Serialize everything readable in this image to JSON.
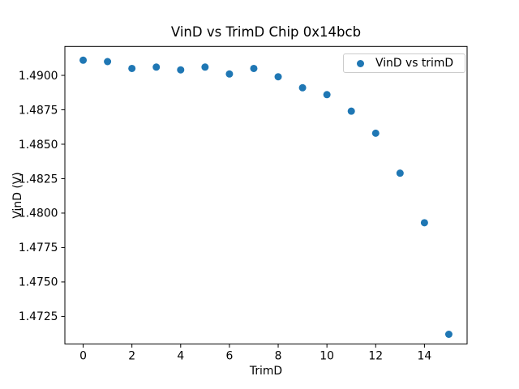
{
  "chart_data": {
    "type": "scatter",
    "title": "VinD vs TrimD Chip 0x14bcb",
    "xlabel": "TrimD",
    "ylabel": "VinD (V)",
    "legend_label": "VinD vs trimD",
    "legend_position": "upper right",
    "marker_color": "#1f77b4",
    "grid": false,
    "x": [
      0,
      1,
      2,
      3,
      4,
      5,
      6,
      7,
      8,
      9,
      10,
      11,
      12,
      13,
      14,
      15
    ],
    "y": [
      1.4911,
      1.491,
      1.4905,
      1.4906,
      1.4904,
      1.4906,
      1.4901,
      1.4905,
      1.4899,
      1.4891,
      1.4886,
      1.4874,
      1.4858,
      1.4829,
      1.4793,
      1.4712
    ],
    "xlim": [
      -0.75,
      15.75
    ],
    "ylim": [
      1.4705,
      1.4921
    ],
    "xticks": {
      "values": [
        0,
        2,
        4,
        6,
        8,
        10,
        12,
        14
      ],
      "labels": [
        "0",
        "2",
        "4",
        "6",
        "8",
        "10",
        "12",
        "14"
      ]
    },
    "yticks": {
      "values": [
        1.4725,
        1.475,
        1.4775,
        1.48,
        1.4825,
        1.485,
        1.4875,
        1.49
      ],
      "labels": [
        "1.4725",
        "1.4750",
        "1.4775",
        "1.4800",
        "1.4825",
        "1.4850",
        "1.4875",
        "1.4900"
      ]
    }
  }
}
